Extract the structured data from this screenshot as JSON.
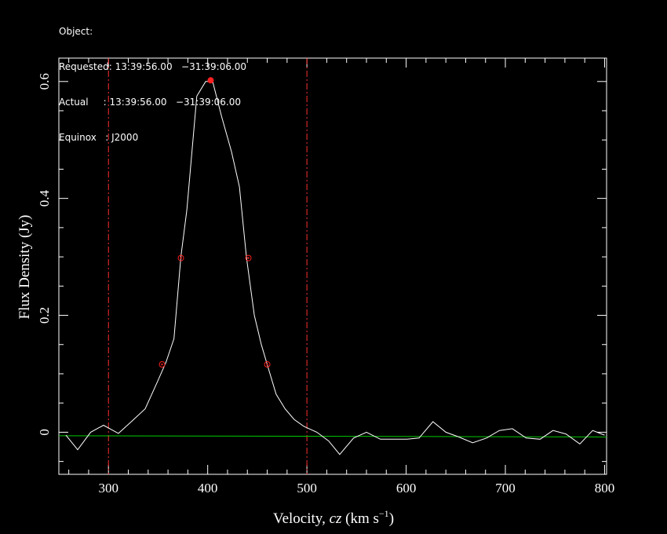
{
  "header": {
    "object_line": "Object:",
    "requested_line": "Requested: 13:39:56.00   −31:39:06.00",
    "actual_line": "Actual     : 13:39:56.00   −31:39:06.00",
    "equinox_line": "Equinox   : J2000"
  },
  "chart_data": {
    "type": "line",
    "xlabel": "Velocity, cz (km s⁻¹)",
    "xlabel_parts": {
      "prefix": "Velocity, ",
      "cz": "cz",
      "unit_open": " (km s",
      "exponent": "−1",
      "unit_close": ")"
    },
    "ylabel": "Flux Density (Jy)",
    "xlim": [
      250,
      802
    ],
    "ylim": [
      -0.072,
      0.64
    ],
    "xticks": [
      300,
      400,
      500,
      600,
      700,
      800
    ],
    "xtick_labels": [
      "300",
      "400",
      "500",
      "600",
      "700",
      "800"
    ],
    "yticks": [
      0,
      0.2,
      0.4,
      0.6
    ],
    "ytick_labels": [
      "0",
      "0.2",
      "0.4",
      "0.6"
    ],
    "grid": false,
    "colors": {
      "spectrum": "#ffffff",
      "baseline": "#00cc00",
      "markers": "#ff2020",
      "window": "#ff3030",
      "axes": "#ffffff",
      "background": "#000000"
    },
    "spectrum": {
      "x": [
        257,
        269,
        282,
        295,
        310,
        323,
        337,
        349,
        358,
        366,
        373,
        379,
        389,
        398,
        405,
        414,
        424,
        432,
        439,
        447,
        454,
        461,
        469,
        478,
        487,
        497,
        510,
        522,
        533,
        547,
        560,
        574,
        588,
        601,
        613,
        627,
        640,
        653,
        667,
        681,
        694,
        707,
        721,
        735,
        748,
        761,
        775,
        788,
        800
      ],
      "y": [
        -0.005,
        -0.03,
        0.0,
        0.012,
        -0.002,
        0.018,
        0.04,
        0.085,
        0.12,
        0.16,
        0.3,
        0.38,
        0.575,
        0.6,
        0.6,
        0.54,
        0.48,
        0.42,
        0.3,
        0.2,
        0.15,
        0.11,
        0.065,
        0.04,
        0.022,
        0.01,
        0.0,
        -0.015,
        -0.038,
        -0.01,
        0.0,
        -0.012,
        -0.012,
        -0.012,
        -0.01,
        0.018,
        0.0,
        -0.008,
        -0.018,
        -0.01,
        0.003,
        0.006,
        -0.01,
        -0.012,
        0.003,
        -0.003,
        -0.02,
        0.003,
        -0.005
      ]
    },
    "baseline": {
      "x": [
        250,
        802
      ],
      "y": [
        -0.006,
        -0.008
      ]
    },
    "peak_marker": {
      "x": 403,
      "y": 0.602
    },
    "half_peak_markers": [
      {
        "x": 373,
        "y": 0.298
      },
      {
        "x": 441,
        "y": 0.298
      }
    ],
    "twenty_percent_markers": [
      {
        "x": 354,
        "y": 0.116
      },
      {
        "x": 460,
        "y": 0.116
      }
    ],
    "velocity_window": [
      300,
      500
    ]
  }
}
